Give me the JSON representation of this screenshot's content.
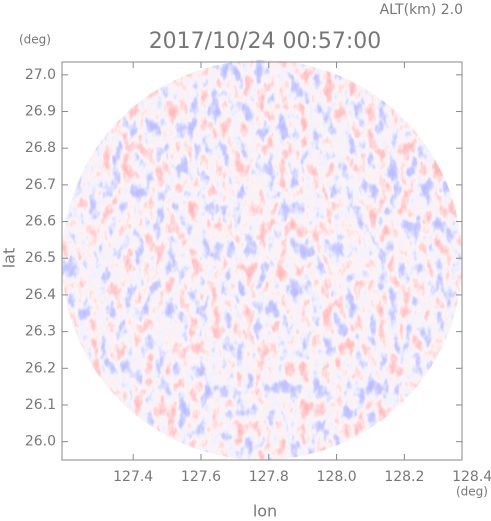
{
  "chart_data": {
    "type": "radar-field",
    "title": "2017/10/24 00:57:00",
    "subtitle": "ALT(km) 2.0",
    "x_label": "lon",
    "y_label": "lat",
    "x_unit": "(deg)",
    "y_unit": "(deg)",
    "xlim": [
      127.19,
      128.37
    ],
    "ylim": [
      25.95,
      27.035
    ],
    "xticks": [
      127.4,
      127.6,
      127.8,
      {
        "value": 128,
        "label": "128.0"
      },
      128.2,
      128.4
    ],
    "yticks": [
      {
        "value": 26,
        "label": "26.0"
      },
      26.1,
      26.2,
      26.3,
      26.4,
      26.5,
      26.6,
      26.7,
      26.8,
      26.9,
      {
        "value": 27,
        "label": "27.0"
      }
    ]
  }
}
